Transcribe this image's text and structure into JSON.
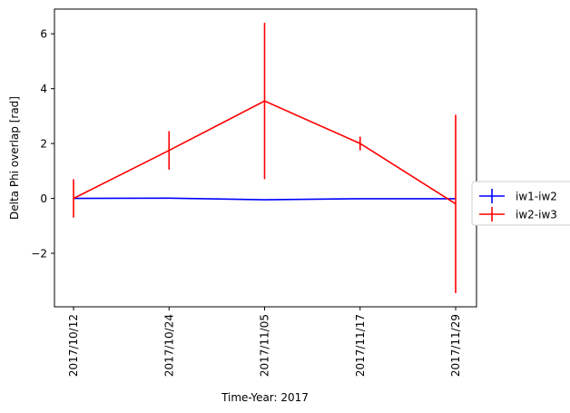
{
  "chart_data": {
    "type": "line",
    "title": "",
    "xlabel": "Time-Year: 2017",
    "ylabel": "Delta Phi overlap [rad]",
    "categories": [
      "2017/10/12",
      "2017/10/24",
      "2017/11/05",
      "2017/11/17",
      "2017/11/29"
    ],
    "ylim": [
      -3.95,
      6.9
    ],
    "yticks": [
      -2,
      0,
      2,
      4,
      6
    ],
    "ytick_labels": [
      "−2",
      "0",
      "2",
      "4",
      "6"
    ],
    "legend_position": "center-right, outside plot",
    "grid": false,
    "series": [
      {
        "name": "iw1-iw2",
        "color": "#0000ff",
        "values": [
          0.0,
          0.01,
          -0.05,
          -0.01,
          -0.01
        ],
        "errors": [
          0.0,
          0.0,
          0.0,
          0.0,
          0.0
        ]
      },
      {
        "name": "iw2-iw3",
        "color": "#ff0000",
        "values": [
          0.0,
          1.75,
          3.55,
          2.0,
          -0.2
        ],
        "errors": [
          0.7,
          0.7,
          2.85,
          0.25,
          3.25
        ]
      }
    ]
  }
}
